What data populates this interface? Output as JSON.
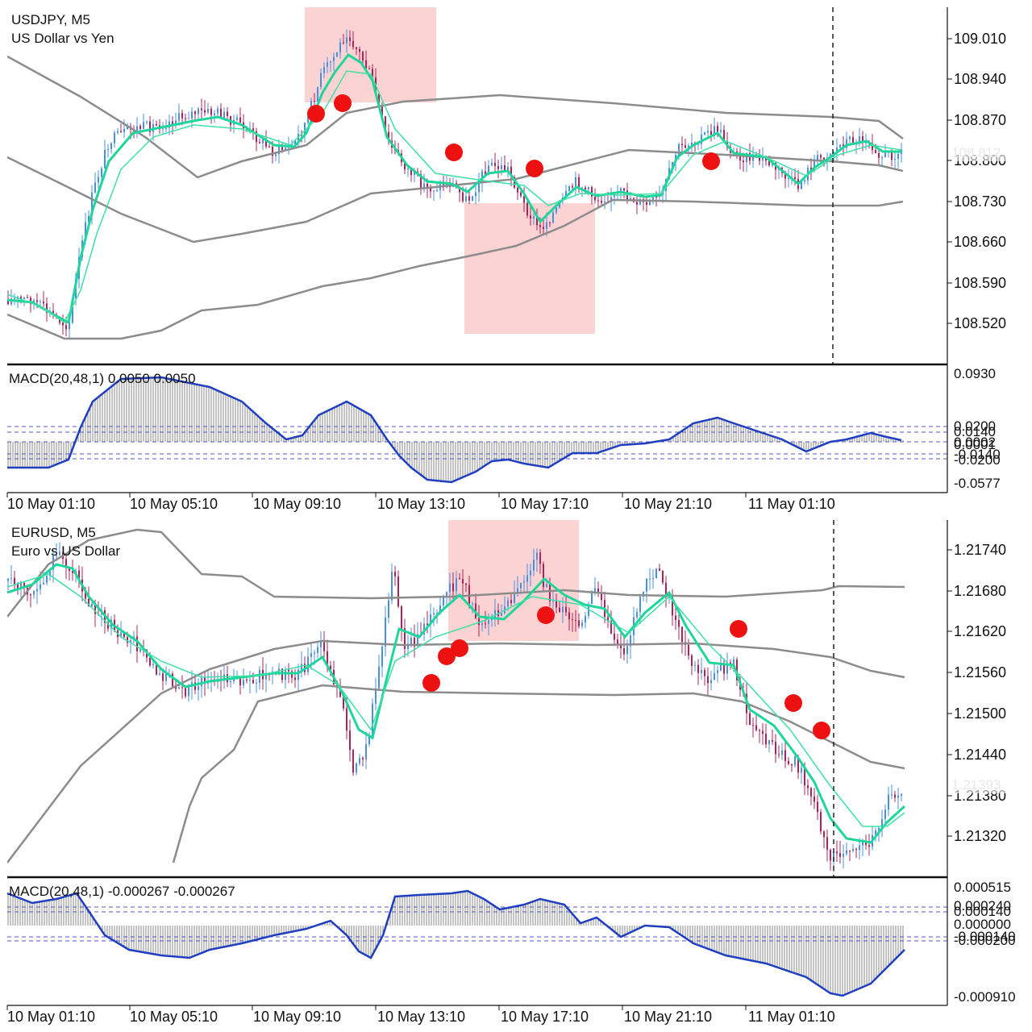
{
  "panels": [
    {
      "symbol": "USDJPY, M5",
      "description": "US Dollar vs Yen",
      "price_ticks": [
        "109.010",
        "108.940",
        "108.870",
        "108.800",
        "108.730",
        "108.660",
        "108.590",
        "108.520"
      ],
      "current_price": "108.812",
      "macd": {
        "label": "MACD(20,48,1) 0.0050 0.0050",
        "ticks": [
          "0.0930",
          "0.0200",
          "0.0140",
          "0.0002",
          "0.0001",
          "-0.0140",
          "-0.0200",
          "-0.0577"
        ]
      },
      "time_ticks": [
        "10 May 01:10",
        "10 May 05:10",
        "10 May 09:10",
        "10 May 13:10",
        "10 May 17:10",
        "10 May 21:10",
        "11 May 01:10"
      ]
    },
    {
      "symbol": "EURUSD, M5",
      "description": "Euro vs US Dollar",
      "price_ticks": [
        "1.21740",
        "1.21680",
        "1.21620",
        "1.21560",
        "1.21500",
        "1.21440",
        "1.21380",
        "1.21320"
      ],
      "current_price": "1.21393",
      "macd": {
        "label": "MACD(20,48,1) -0.000267 -0.000267",
        "ticks": [
          "0.000515",
          "0.000240",
          "0.000140",
          "0.000000",
          "-0.000140",
          "-0.000200",
          "-0.000910"
        ]
      },
      "time_ticks": [
        "10 May 01:10",
        "10 May 05:10",
        "10 May 09:10",
        "10 May 13:10",
        "10 May 17:10",
        "10 May 21:10",
        "11 May 01:10"
      ]
    }
  ],
  "colors": {
    "bollinger": "#8c8c8c",
    "ma_fast": "#1fd69a",
    "ma_slow": "#3ee0a5",
    "candle_up": "#4a90e2",
    "candle_down": "#b0205a",
    "macd_line": "#1f3fc0",
    "highlight_zone": "#fbd3d3",
    "signal_marker": "#ee1111"
  }
}
